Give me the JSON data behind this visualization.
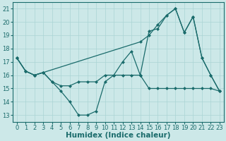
{
  "title": "",
  "xlabel": "Humidex (Indice chaleur)",
  "ylabel": "",
  "bg_color": "#cce8e8",
  "line_color": "#1a6b6b",
  "xlim": [
    -0.5,
    23.5
  ],
  "ylim": [
    12.5,
    21.5
  ],
  "yticks": [
    13,
    14,
    15,
    16,
    17,
    18,
    19,
    20,
    21
  ],
  "xticks": [
    0,
    1,
    2,
    3,
    4,
    5,
    6,
    7,
    8,
    9,
    10,
    11,
    12,
    13,
    14,
    15,
    16,
    17,
    18,
    19,
    20,
    21,
    22,
    23
  ],
  "line1_x": [
    0,
    1,
    2,
    3,
    4,
    5,
    6,
    7,
    8,
    9,
    10,
    11,
    12,
    13,
    14,
    15,
    16,
    17,
    18,
    19,
    20,
    21,
    22,
    23
  ],
  "line1_y": [
    17.3,
    16.3,
    16.0,
    16.2,
    15.5,
    14.8,
    14.0,
    13.0,
    13.0,
    13.3,
    15.5,
    16.0,
    17.0,
    17.8,
    16.0,
    19.3,
    19.5,
    20.5,
    21.0,
    19.2,
    20.4,
    17.3,
    16.0,
    14.8
  ],
  "line2_x": [
    0,
    1,
    2,
    3,
    14,
    15,
    16,
    17,
    18,
    19,
    20,
    21,
    22,
    23
  ],
  "line2_y": [
    17.3,
    16.3,
    16.0,
    16.2,
    18.5,
    19.0,
    19.8,
    20.5,
    21.0,
    19.2,
    20.4,
    17.3,
    16.0,
    14.8
  ],
  "line3_x": [
    0,
    1,
    2,
    3,
    4,
    5,
    6,
    7,
    8,
    9,
    10,
    11,
    12,
    13,
    14,
    15,
    16,
    17,
    18,
    19,
    20,
    21,
    22,
    23
  ],
  "line3_y": [
    17.3,
    16.3,
    16.0,
    16.2,
    15.5,
    15.2,
    15.2,
    15.5,
    15.5,
    15.5,
    16.0,
    16.0,
    16.0,
    16.0,
    16.0,
    15.0,
    15.0,
    15.0,
    15.0,
    15.0,
    15.0,
    15.0,
    15.0,
    14.8
  ],
  "marker_size": 2.5,
  "line_width": 0.9,
  "grid_color": "#aad4d4",
  "tick_fontsize": 6,
  "label_fontsize": 7.5
}
